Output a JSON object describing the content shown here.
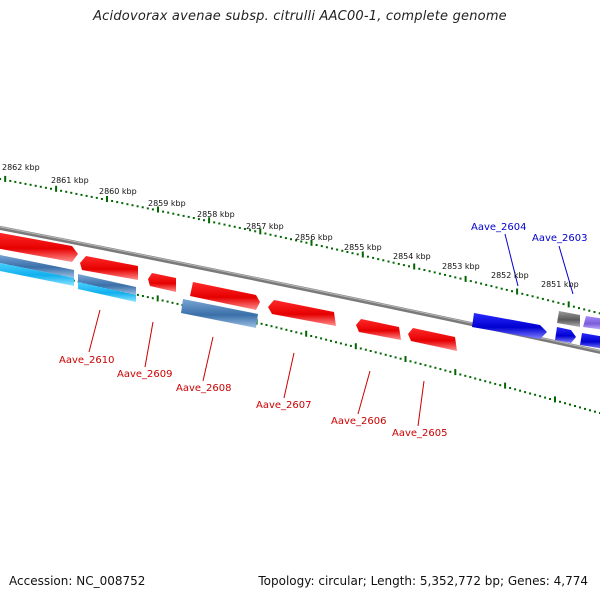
{
  "title": "Acidovorax avenae subsp. citrulli AAC00-1, complete genome",
  "footer": {
    "accession": "Accession: NC_008752",
    "stats": "Topology: circular; Length: 5,352,772 bp; Genes: 4,774"
  },
  "scale": {
    "labels": [
      "2862 kbp",
      "2861 kbp",
      "2860 kbp",
      "2859 kbp",
      "2858 kbp",
      "2857 kbp",
      "2856 kbp",
      "2855 kbp",
      "2854 kbp",
      "2853 kbp",
      "2852 kbp",
      "2851 kbp"
    ]
  },
  "genes": [
    {
      "name": "Aave_2610",
      "strand": "reverse",
      "color": "#e60000"
    },
    {
      "name": "Aave_2609",
      "strand": "reverse",
      "color": "#e60000"
    },
    {
      "name": "Aave_2608",
      "strand": "reverse",
      "color": "#e60000"
    },
    {
      "name": "Aave_2607",
      "strand": "reverse",
      "color": "#e60000"
    },
    {
      "name": "Aave_2606",
      "strand": "reverse",
      "color": "#e60000"
    },
    {
      "name": "Aave_2605",
      "strand": "reverse",
      "color": "#e60000"
    },
    {
      "name": "Aave_2604",
      "strand": "forward",
      "color": "#0000cc"
    },
    {
      "name": "Aave_2603",
      "strand": "forward",
      "color": "#0000cc"
    }
  ],
  "colors": {
    "scale_ticks": "#006600",
    "backbone": "#808080",
    "reverse_gene": "#e60000",
    "forward_gene": "#0000cc",
    "reverse_label": "#cc0000",
    "forward_label": "#0000cc",
    "feature_blue": "#3a6fa8",
    "feature_cyan": "#10b8f0",
    "feature_gray": "#606060",
    "feature_purple": "#7a5cd8"
  }
}
